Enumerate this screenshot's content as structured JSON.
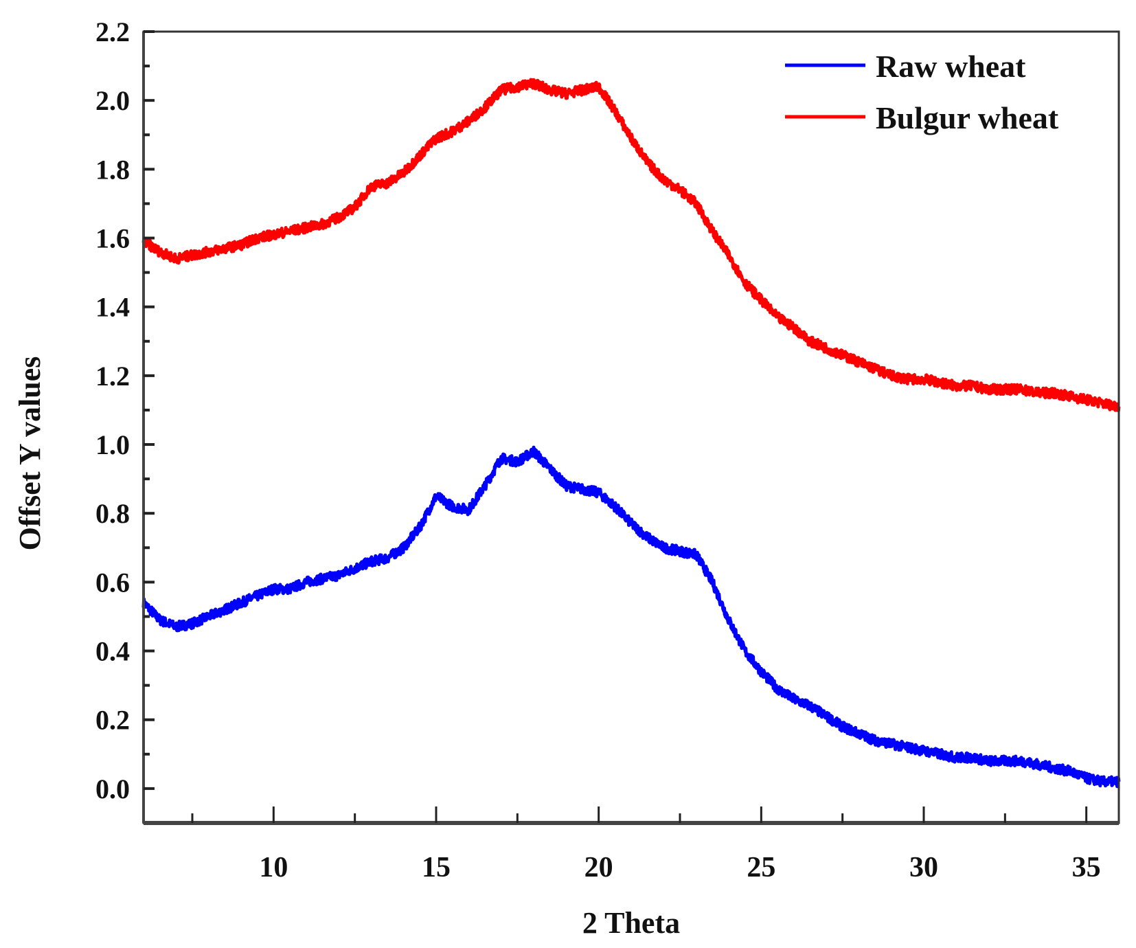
{
  "chart_data": {
    "type": "line",
    "title": "",
    "xlabel": "2 Theta",
    "ylabel": "Offset Y values",
    "xlim": [
      6,
      36
    ],
    "ylim": [
      -0.1,
      2.2
    ],
    "xticks": [
      10,
      15,
      20,
      25,
      30,
      35
    ],
    "xtick_labels": [
      "10",
      "15",
      "20",
      "25",
      "30",
      "35"
    ],
    "yticks": [
      0.0,
      0.2,
      0.4,
      0.6,
      0.8,
      1.0,
      1.2,
      1.4,
      1.6,
      1.8,
      2.0,
      2.2
    ],
    "ytick_labels": [
      "0.0",
      "0.2",
      "0.4",
      "0.6",
      "0.8",
      "1.0",
      "1.2",
      "1.4",
      "1.6",
      "1.8",
      "2.0",
      "2.2"
    ],
    "grid": false,
    "legend_position": "top-right",
    "x": [
      6,
      6.5,
      7,
      7.5,
      8,
      8.5,
      9,
      9.5,
      10,
      10.5,
      11,
      11.5,
      12,
      12.5,
      13,
      13.5,
      14,
      14.5,
      15,
      15.5,
      16,
      16.5,
      17,
      17.5,
      18,
      18.5,
      19,
      19.5,
      20,
      20.5,
      21,
      21.5,
      22,
      22.5,
      23,
      23.5,
      24,
      24.5,
      25,
      25.5,
      26,
      26.5,
      27,
      27.5,
      28,
      28.5,
      29,
      29.5,
      30,
      30.5,
      31,
      31.5,
      32,
      32.5,
      33,
      33.5,
      34,
      34.5,
      35,
      35.5,
      36
    ],
    "series": [
      {
        "name": "Raw wheat",
        "color": "#0000ff",
        "values": [
          0.54,
          0.49,
          0.47,
          0.48,
          0.5,
          0.52,
          0.54,
          0.56,
          0.58,
          0.58,
          0.6,
          0.61,
          0.62,
          0.64,
          0.66,
          0.67,
          0.7,
          0.76,
          0.85,
          0.82,
          0.81,
          0.88,
          0.96,
          0.95,
          0.98,
          0.93,
          0.88,
          0.87,
          0.86,
          0.82,
          0.77,
          0.73,
          0.7,
          0.69,
          0.68,
          0.6,
          0.49,
          0.4,
          0.34,
          0.29,
          0.26,
          0.24,
          0.21,
          0.18,
          0.16,
          0.14,
          0.13,
          0.12,
          0.11,
          0.1,
          0.09,
          0.09,
          0.08,
          0.08,
          0.08,
          0.07,
          0.06,
          0.05,
          0.03,
          0.02,
          0.02
        ]
      },
      {
        "name": "Bulgur wheat",
        "color": "#ff0000",
        "values": [
          1.59,
          1.56,
          1.54,
          1.55,
          1.56,
          1.57,
          1.58,
          1.6,
          1.61,
          1.62,
          1.63,
          1.64,
          1.66,
          1.69,
          1.75,
          1.76,
          1.79,
          1.84,
          1.89,
          1.91,
          1.94,
          1.98,
          2.03,
          2.04,
          2.05,
          2.03,
          2.02,
          2.03,
          2.04,
          1.97,
          1.89,
          1.82,
          1.77,
          1.74,
          1.7,
          1.62,
          1.55,
          1.47,
          1.42,
          1.37,
          1.34,
          1.3,
          1.28,
          1.26,
          1.24,
          1.22,
          1.2,
          1.19,
          1.19,
          1.18,
          1.17,
          1.17,
          1.16,
          1.16,
          1.16,
          1.15,
          1.15,
          1.14,
          1.13,
          1.12,
          1.11
        ]
      }
    ]
  }
}
